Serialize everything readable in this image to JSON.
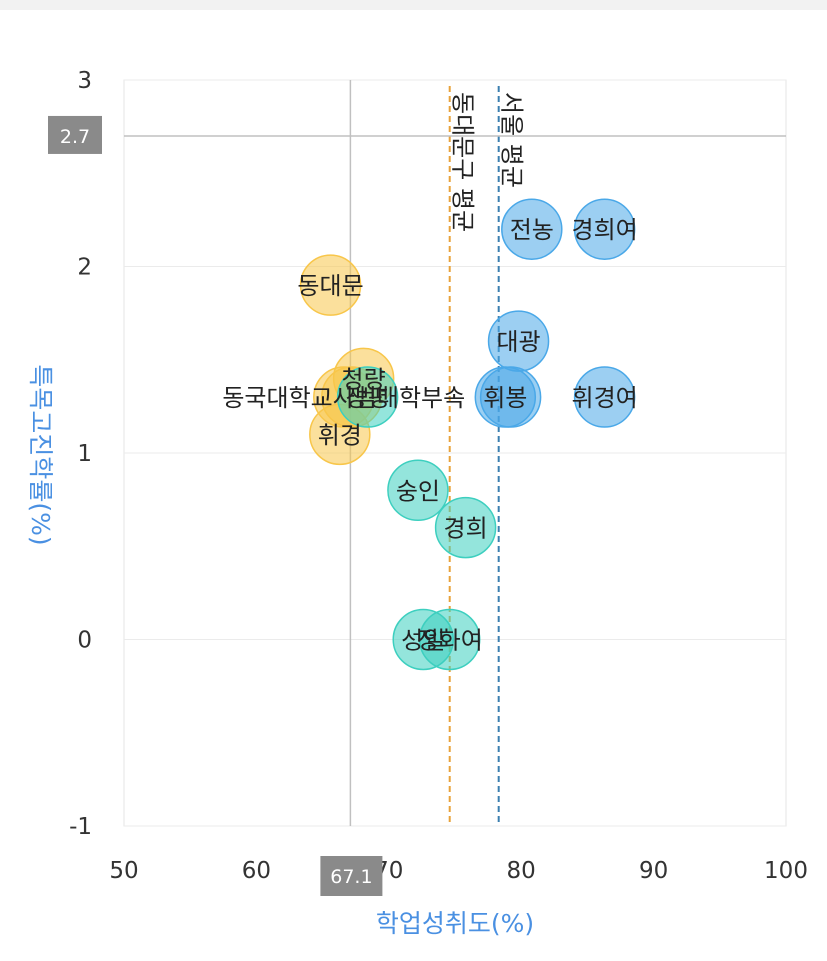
{
  "chart_data": {
    "type": "scatter",
    "xlabel": "학업성취도(%)",
    "ylabel": "특목고진학률(%)",
    "xlim": [
      50,
      100
    ],
    "ylim": [
      -1,
      3
    ],
    "x_ticks": [
      "50",
      "60",
      "70",
      "80",
      "90",
      "100"
    ],
    "y_ticks": [
      "-1",
      "0",
      "1",
      "2",
      "3"
    ],
    "grid": true,
    "colors": {
      "blue": "#4aa8e8",
      "teal": "#3dcfbf",
      "yellow": "#f8c64a",
      "orange_line": "#e8a23a",
      "blue_line": "#3b7fb0"
    },
    "crosshair": {
      "x": 67.1,
      "y": 2.7,
      "x_label": "67.1",
      "y_label": "2.7"
    },
    "reference_lines": [
      {
        "x": 74.6,
        "label": "동대문구 평균",
        "color": "orange_line"
      },
      {
        "x": 78.3,
        "label": "서울 평균",
        "color": "blue_line"
      }
    ],
    "points": [
      {
        "x": 80.8,
        "y": 2.2,
        "label": "전농",
        "color": "blue"
      },
      {
        "x": 86.3,
        "y": 2.2,
        "label": "경희여",
        "color": "blue"
      },
      {
        "x": 79.8,
        "y": 1.6,
        "label": "대광",
        "color": "blue"
      },
      {
        "x": 79.2,
        "y": 1.3,
        "label": "",
        "color": "blue"
      },
      {
        "x": 78.8,
        "y": 1.3,
        "label": "휘봉",
        "color": "blue"
      },
      {
        "x": 86.3,
        "y": 1.3,
        "label": "휘경여",
        "color": "blue"
      },
      {
        "x": 65.6,
        "y": 1.9,
        "label": "동대문",
        "color": "yellow"
      },
      {
        "x": 68.1,
        "y": 1.4,
        "label": "청량",
        "color": "yellow"
      },
      {
        "x": 66.6,
        "y": 1.3,
        "label": "동국대학교사범대학부속",
        "color": "yellow"
      },
      {
        "x": 67.2,
        "y": 1.3,
        "label": "",
        "color": "yellow"
      },
      {
        "x": 66.3,
        "y": 1.1,
        "label": "휘경",
        "color": "yellow"
      },
      {
        "x": 68.4,
        "y": 1.3,
        "label": "장평",
        "color": "teal"
      },
      {
        "x": 72.2,
        "y": 0.8,
        "label": "숭인",
        "color": "teal"
      },
      {
        "x": 75.8,
        "y": 0.6,
        "label": "경희",
        "color": "teal"
      },
      {
        "x": 72.6,
        "y": 0.0,
        "label": "성일",
        "color": "teal"
      },
      {
        "x": 74.6,
        "y": 0.0,
        "label": "정화여",
        "color": "teal"
      }
    ]
  }
}
